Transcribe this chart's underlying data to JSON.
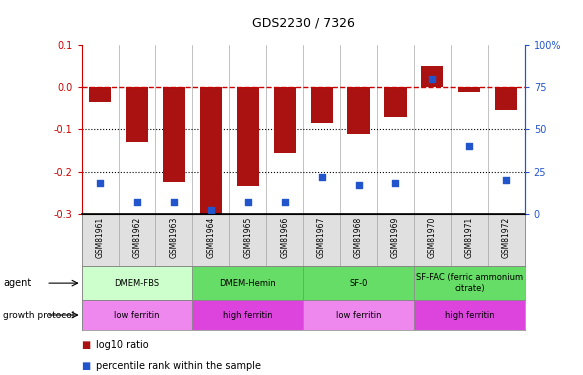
{
  "title": "GDS2230 / 7326",
  "samples": [
    "GSM81961",
    "GSM81962",
    "GSM81963",
    "GSM81964",
    "GSM81965",
    "GSM81966",
    "GSM81967",
    "GSM81968",
    "GSM81969",
    "GSM81970",
    "GSM81971",
    "GSM81972"
  ],
  "log10_ratio": [
    -0.035,
    -0.13,
    -0.225,
    -0.305,
    -0.235,
    -0.155,
    -0.085,
    -0.11,
    -0.07,
    0.05,
    -0.012,
    -0.055
  ],
  "percentile_rank": [
    18,
    7,
    7,
    2,
    7,
    7,
    22,
    17,
    18,
    80,
    40,
    20
  ],
  "bar_color": "#aa1111",
  "dot_color": "#2255cc",
  "ylim_left": [
    -0.3,
    0.1
  ],
  "ylim_right": [
    0,
    100
  ],
  "yticks_left": [
    0.1,
    0.0,
    -0.1,
    -0.2,
    -0.3
  ],
  "yticks_right": [
    100,
    75,
    50,
    25,
    0
  ],
  "agent_groups": [
    {
      "label": "DMEM-FBS",
      "start": 0,
      "end": 3,
      "color": "#ccffcc"
    },
    {
      "label": "DMEM-Hemin",
      "start": 3,
      "end": 6,
      "color": "#66dd66"
    },
    {
      "label": "SF-0",
      "start": 6,
      "end": 9,
      "color": "#66dd66"
    },
    {
      "label": "SF-FAC (ferric ammonium\ncitrate)",
      "start": 9,
      "end": 12,
      "color": "#66dd66"
    }
  ],
  "protocol_groups": [
    {
      "label": "low ferritin",
      "start": 0,
      "end": 3,
      "color": "#ee88ee"
    },
    {
      "label": "high ferritin",
      "start": 3,
      "end": 6,
      "color": "#dd44dd"
    },
    {
      "label": "low ferritin",
      "start": 6,
      "end": 9,
      "color": "#ee88ee"
    },
    {
      "label": "high ferritin",
      "start": 9,
      "end": 12,
      "color": "#dd44dd"
    }
  ],
  "legend_items": [
    {
      "label": "log10 ratio",
      "color": "#aa1111"
    },
    {
      "label": "percentile rank within the sample",
      "color": "#2255cc"
    }
  ],
  "fig_width": 5.83,
  "fig_height": 3.75,
  "dpi": 100
}
